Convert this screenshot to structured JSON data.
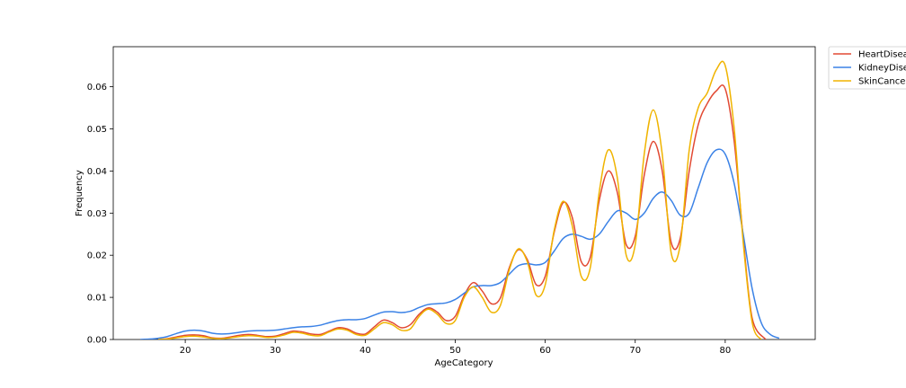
{
  "chart_data": {
    "type": "line",
    "title": "",
    "xlabel": "AgeCategory",
    "ylabel": "Frequency",
    "xlim": [
      12,
      90
    ],
    "ylim": [
      0,
      0.0695
    ],
    "xticks": [
      20,
      30,
      40,
      50,
      60,
      70,
      80
    ],
    "yticks": [
      0.0,
      0.01,
      0.02,
      0.03,
      0.04,
      0.05,
      0.06
    ],
    "ytick_labels": [
      "0.00",
      "0.01",
      "0.02",
      "0.03",
      "0.04",
      "0.05",
      "0.06"
    ],
    "grid": false,
    "legend_position": "outside-top-right",
    "series": [
      {
        "name": "HeartDisease",
        "color": "#e24a33",
        "x": [
          17,
          18,
          19,
          20,
          21,
          22,
          23,
          24,
          25,
          26,
          27,
          28,
          29,
          30,
          31,
          32,
          33,
          34,
          35,
          36,
          37,
          38,
          39,
          40,
          41,
          42,
          43,
          44,
          45,
          46,
          47,
          48,
          49,
          50,
          51,
          52,
          53,
          54,
          55,
          56,
          57,
          58,
          59,
          60,
          61,
          62,
          63,
          64,
          65,
          66,
          67,
          68,
          69,
          70,
          71,
          72,
          73,
          74,
          75,
          76,
          77,
          78,
          79,
          80,
          81,
          82,
          83,
          84.5
        ],
        "values": [
          0.0,
          0.0002,
          0.0006,
          0.001,
          0.0011,
          0.0009,
          0.0004,
          0.0003,
          0.0006,
          0.001,
          0.0012,
          0.001,
          0.0007,
          0.0008,
          0.0014,
          0.002,
          0.0018,
          0.0013,
          0.0012,
          0.002,
          0.0028,
          0.0025,
          0.0015,
          0.0013,
          0.003,
          0.0046,
          0.004,
          0.0028,
          0.0035,
          0.006,
          0.0075,
          0.0065,
          0.0045,
          0.0055,
          0.0105,
          0.0135,
          0.0115,
          0.0085,
          0.0098,
          0.017,
          0.0213,
          0.019,
          0.013,
          0.015,
          0.0255,
          0.0325,
          0.029,
          0.0185,
          0.0195,
          0.033,
          0.04,
          0.035,
          0.0225,
          0.0245,
          0.039,
          0.047,
          0.04,
          0.023,
          0.024,
          0.04,
          0.051,
          0.056,
          0.059,
          0.0595,
          0.047,
          0.024,
          0.005,
          0.0
        ]
      },
      {
        "name": "KidneyDisease",
        "color": "#3b82e6",
        "x": [
          15,
          16,
          17,
          18,
          19,
          20,
          21,
          22,
          23,
          24,
          25,
          26,
          27,
          28,
          29,
          30,
          31,
          32,
          33,
          34,
          35,
          36,
          37,
          38,
          39,
          40,
          41,
          42,
          43,
          44,
          45,
          46,
          47,
          48,
          49,
          50,
          51,
          52,
          53,
          54,
          55,
          56,
          57,
          58,
          59,
          60,
          61,
          62,
          63,
          64,
          65,
          66,
          67,
          68,
          69,
          70,
          71,
          72,
          73,
          74,
          75,
          76,
          77,
          78,
          79,
          80,
          81,
          82,
          83,
          84,
          85,
          86
        ],
        "values": [
          0.0,
          0.0001,
          0.0003,
          0.0007,
          0.0014,
          0.002,
          0.0022,
          0.002,
          0.0015,
          0.0013,
          0.0014,
          0.0017,
          0.002,
          0.0021,
          0.0021,
          0.0022,
          0.0025,
          0.0028,
          0.003,
          0.0031,
          0.0034,
          0.004,
          0.0045,
          0.0047,
          0.0047,
          0.005,
          0.0058,
          0.0065,
          0.0066,
          0.0064,
          0.0067,
          0.0076,
          0.0083,
          0.0085,
          0.0087,
          0.0095,
          0.011,
          0.0125,
          0.0128,
          0.0128,
          0.0135,
          0.0155,
          0.0175,
          0.018,
          0.0177,
          0.0183,
          0.021,
          0.024,
          0.025,
          0.0245,
          0.0238,
          0.025,
          0.028,
          0.0305,
          0.03,
          0.0285,
          0.03,
          0.0335,
          0.035,
          0.033,
          0.0295,
          0.03,
          0.036,
          0.042,
          0.045,
          0.044,
          0.037,
          0.025,
          0.012,
          0.004,
          0.0012,
          0.0003
        ]
      },
      {
        "name": "SkinCancer",
        "color": "#f0b400",
        "x": [
          17,
          18,
          19,
          20,
          21,
          22,
          23,
          24,
          25,
          26,
          27,
          28,
          29,
          30,
          31,
          32,
          33,
          34,
          35,
          36,
          37,
          38,
          39,
          40,
          41,
          42,
          43,
          44,
          45,
          46,
          47,
          48,
          49,
          50,
          51,
          52,
          53,
          54,
          55,
          56,
          57,
          58,
          59,
          60,
          61,
          62,
          63,
          64,
          65,
          66,
          67,
          68,
          69,
          70,
          71,
          72,
          73,
          74,
          75,
          76,
          77,
          78,
          79,
          80,
          81,
          82,
          83,
          84
        ],
        "values": [
          0.0,
          0.0001,
          0.0004,
          0.0007,
          0.0008,
          0.0006,
          0.0003,
          0.0002,
          0.0004,
          0.0007,
          0.0009,
          0.0008,
          0.0005,
          0.0006,
          0.0011,
          0.0017,
          0.0015,
          0.001,
          0.0009,
          0.0018,
          0.0025,
          0.0022,
          0.0012,
          0.001,
          0.0025,
          0.004,
          0.0035,
          0.0022,
          0.0025,
          0.0055,
          0.0072,
          0.006,
          0.0038,
          0.0045,
          0.01,
          0.0125,
          0.01,
          0.0065,
          0.008,
          0.0165,
          0.0215,
          0.0185,
          0.0105,
          0.013,
          0.026,
          0.0328,
          0.027,
          0.015,
          0.017,
          0.035,
          0.045,
          0.0385,
          0.02,
          0.0225,
          0.044,
          0.0545,
          0.044,
          0.0205,
          0.0225,
          0.045,
          0.055,
          0.0585,
          0.064,
          0.065,
          0.05,
          0.023,
          0.004,
          0.0
        ]
      }
    ]
  }
}
